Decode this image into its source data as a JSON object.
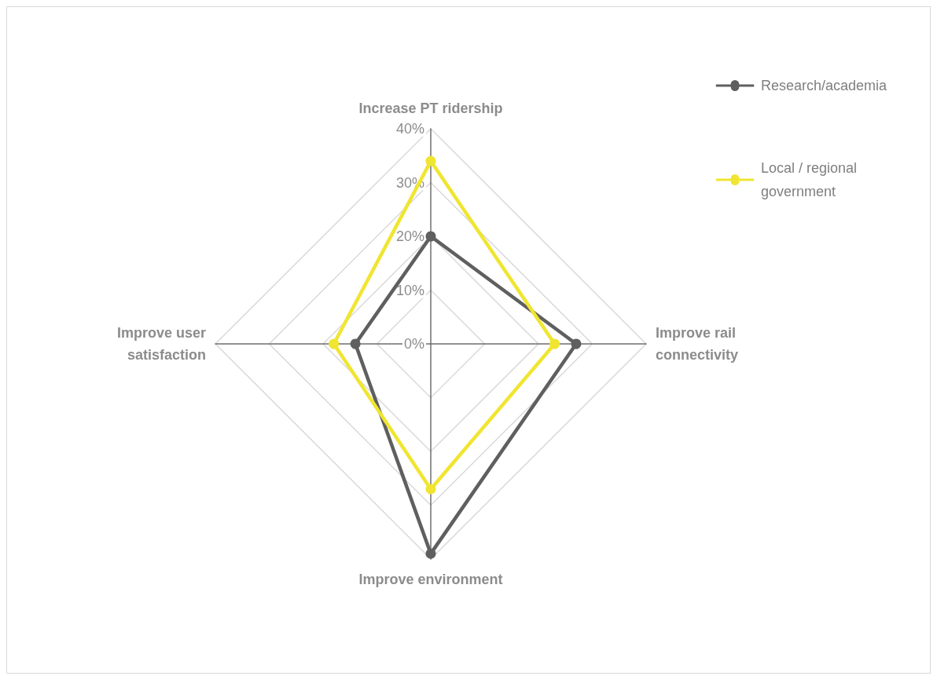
{
  "chart_data": {
    "type": "radar",
    "categories": [
      "Increase PT ridership",
      "Improve rail connectivity",
      "Improve environment",
      "Improve user satisfaction"
    ],
    "series": [
      {
        "name": "Research/academia",
        "color": "#5f5f5f",
        "values": [
          20,
          27,
          39,
          14
        ]
      },
      {
        "name": "Local / regional government",
        "color": "#f0e530",
        "values": [
          34,
          23,
          27,
          18
        ]
      }
    ],
    "ylim": [
      0,
      40
    ],
    "yticks": [
      {
        "value": 0,
        "label": "0%"
      },
      {
        "value": 10,
        "label": "10%"
      },
      {
        "value": 20,
        "label": "20%"
      },
      {
        "value": 30,
        "label": "30%"
      },
      {
        "value": 40,
        "label": "40%"
      }
    ],
    "legend": "top right",
    "marker": "circle",
    "grid": true
  }
}
